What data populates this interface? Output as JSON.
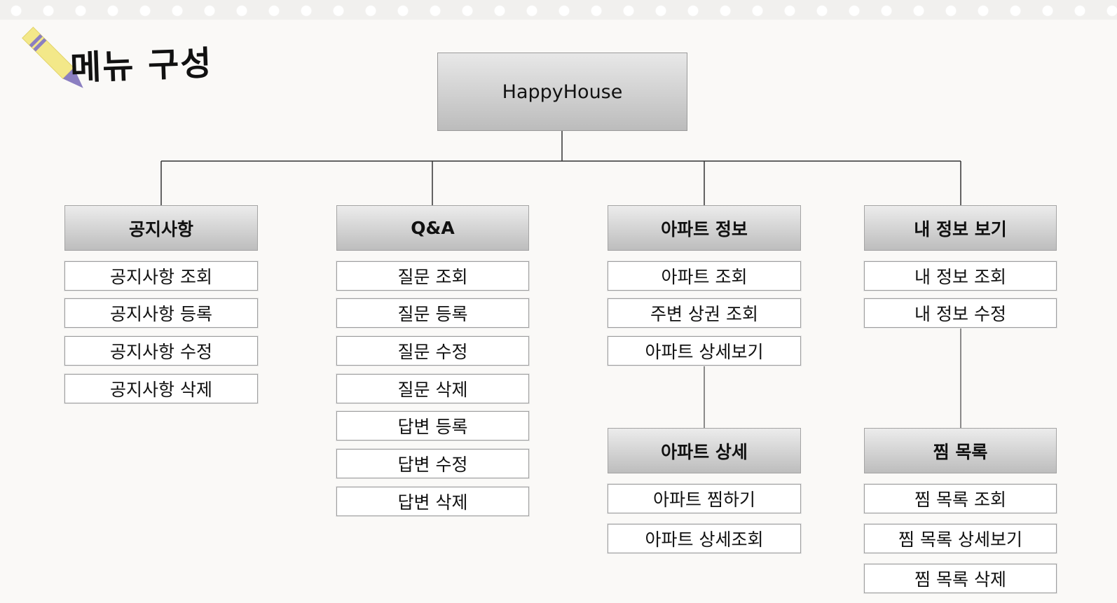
{
  "title": "메뉴 구성",
  "root": "HappyHouse",
  "colors": {
    "header_top": "#ececec",
    "header_bottom": "#bdbdbd",
    "pencil": "#f3e889",
    "pencil_tip": "#8b7fc1"
  },
  "icons": {
    "pencil": "pencil-icon"
  },
  "columns": [
    {
      "header": "공지사항",
      "items": [
        "공지사항 조회",
        "공지사항 등록",
        "공지사항 수정",
        "공지사항 삭제"
      ]
    },
    {
      "header": "Q&A",
      "items": [
        "질문 조회",
        "질문 등록",
        "질문 수정",
        "질문 삭제",
        "답변 등록",
        "답변 수정",
        "답변 삭제"
      ]
    },
    {
      "header": "아파트 정보",
      "items": [
        "아파트 조회",
        "주변 상권 조회",
        "아파트 상세보기"
      ],
      "sub": {
        "header": "아파트 상세",
        "items": [
          "아파트 찜하기",
          "아파트 상세조회"
        ]
      }
    },
    {
      "header": "내 정보 보기",
      "items": [
        "내 정보 조회",
        "내 정보 수정"
      ],
      "sub": {
        "header": "찜 목록",
        "items": [
          "찜 목록 조회",
          "찜 목록 상세보기",
          "찜 목록 삭제"
        ]
      }
    }
  ]
}
